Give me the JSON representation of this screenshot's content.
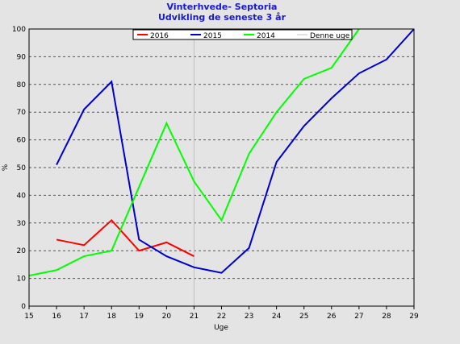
{
  "chart_data": {
    "type": "line",
    "title": "Vinterhvede- Septoria",
    "subtitle": "Udvikling de seneste 3 år",
    "xlabel": "Uge",
    "ylabel": "%",
    "xlim": [
      15,
      29
    ],
    "ylim": [
      0,
      100
    ],
    "x_ticks": [
      "15",
      "16",
      "17",
      "18",
      "19",
      "20",
      "21",
      "22",
      "23",
      "24",
      "25",
      "26",
      "27",
      "28",
      "29"
    ],
    "y_ticks": [
      "0",
      "10",
      "20",
      "30",
      "40",
      "50",
      "60",
      "70",
      "80",
      "90",
      "100"
    ],
    "grid": "horizontal dashed",
    "legend_position": "top",
    "series": [
      {
        "name": "2016",
        "color": "#ff0000",
        "points": [
          [
            16,
            24
          ],
          [
            17,
            22
          ],
          [
            18,
            31
          ],
          [
            19,
            20
          ],
          [
            20,
            23
          ],
          [
            21,
            18
          ]
        ]
      },
      {
        "name": "2015",
        "color": "#0000cc",
        "points": [
          [
            16,
            51
          ],
          [
            17,
            71
          ],
          [
            18,
            81
          ],
          [
            19,
            24
          ],
          [
            20,
            18
          ],
          [
            21,
            14
          ],
          [
            22,
            12
          ],
          [
            23,
            21
          ],
          [
            24,
            52
          ],
          [
            25,
            65
          ],
          [
            26,
            75
          ],
          [
            27,
            84
          ],
          [
            28,
            89
          ],
          [
            29,
            100
          ]
        ]
      },
      {
        "name": "2014",
        "color": "#00ff00",
        "points": [
          [
            15,
            11
          ],
          [
            16,
            13
          ],
          [
            17,
            18
          ],
          [
            18,
            20
          ],
          [
            19,
            43
          ],
          [
            20,
            66
          ],
          [
            21,
            45
          ],
          [
            22,
            31
          ],
          [
            23,
            55
          ],
          [
            24,
            70
          ],
          [
            25,
            82
          ],
          [
            26,
            86
          ],
          [
            27,
            100
          ]
        ]
      }
    ],
    "current_week": {
      "name": "Denne uge",
      "x": 21,
      "color": "#c0c0c0"
    }
  }
}
